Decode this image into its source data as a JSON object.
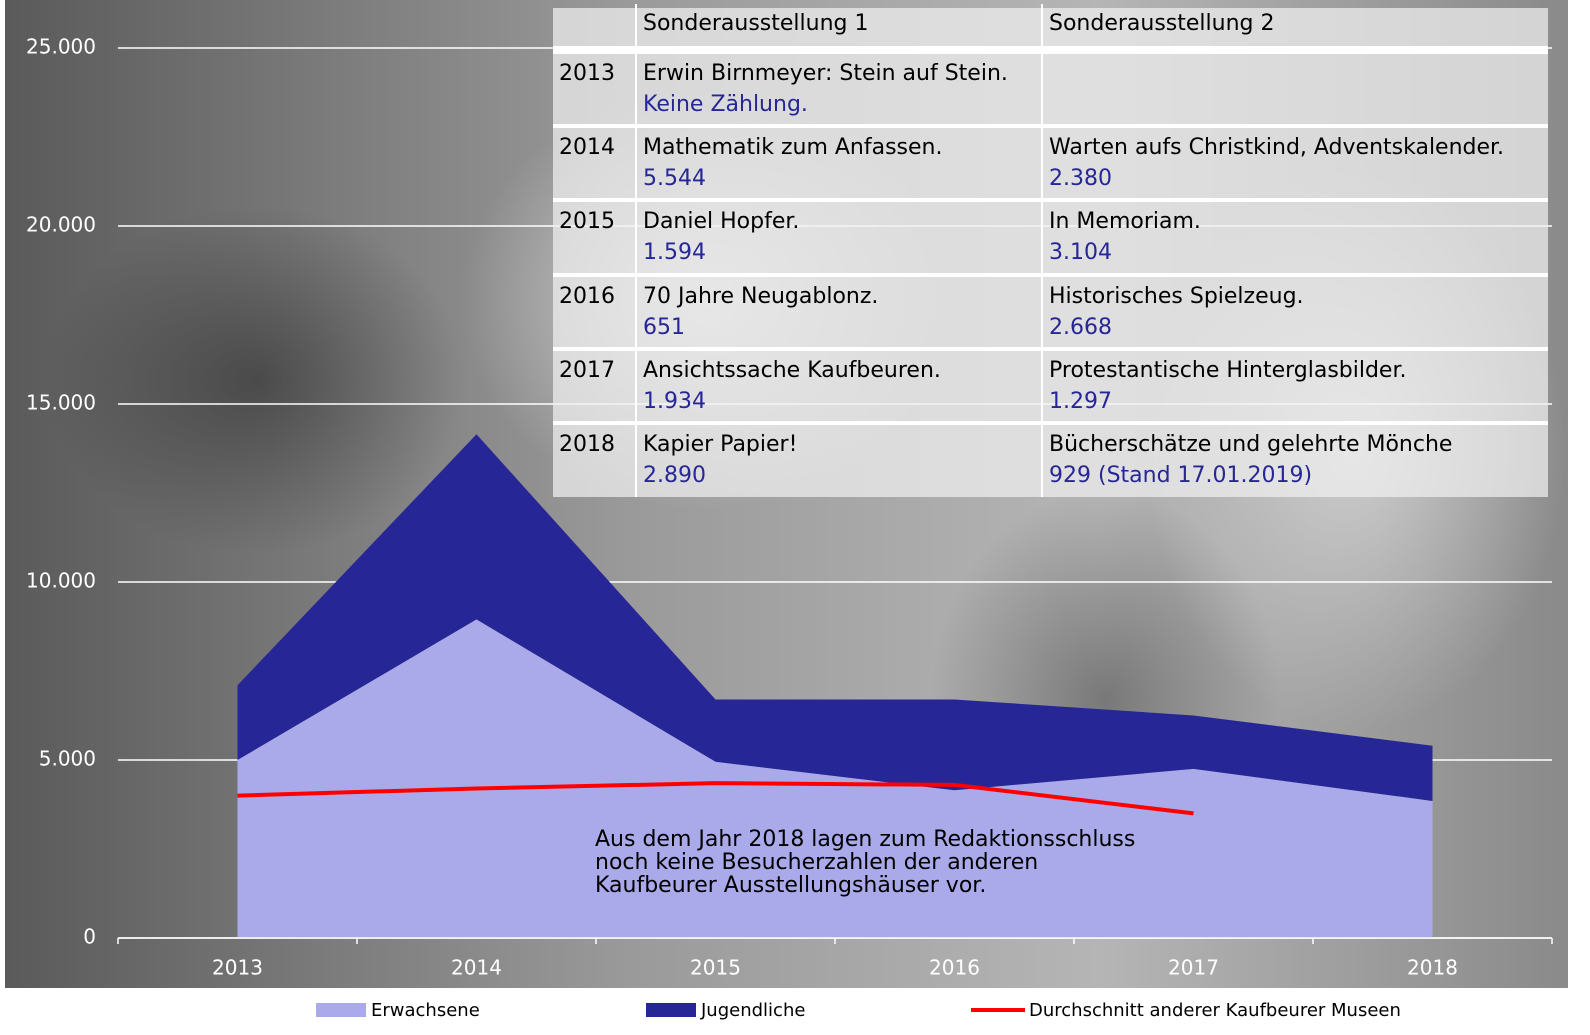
{
  "chart_data": {
    "type": "stacked-area-line",
    "categories": [
      "2013",
      "2014",
      "2015",
      "2016",
      "2017",
      "2018"
    ],
    "series": [
      {
        "name": "Erwachsene",
        "color": "#aaaaea",
        "kind": "area",
        "values": [
          5000,
          8950,
          4950,
          4150,
          4750,
          3850
        ]
      },
      {
        "name": "Jugendliche",
        "color": "#262696",
        "kind": "area",
        "values": [
          2100,
          5200,
          1750,
          2550,
          1500,
          1550
        ]
      },
      {
        "name": "Durchschnitt anderer Kaufbeurer Museen",
        "color": "#ff0000",
        "kind": "line",
        "values": [
          4000,
          4200,
          4350,
          4300,
          3500,
          null
        ]
      }
    ],
    "ylim": [
      0,
      25000
    ],
    "yticks": [
      0,
      {
        "value": 5000,
        "label": "5.000"
      },
      {
        "value": 10000,
        "label": "10.000"
      },
      {
        "value": 15000,
        "label": "15.000"
      },
      {
        "value": 20000,
        "label": "20.000"
      },
      {
        "value": 25000,
        "label": "25.000"
      }
    ],
    "grid": true,
    "legend": "bottom",
    "annotation": [
      "Aus dem Jahr 2018 lagen zum Redaktionsschluss",
      "noch keine Besucherzahlen der anderen",
      "Kaufbeurer Ausstellungshäuser vor."
    ]
  },
  "table": {
    "header": [
      "Sonderausstellung 1",
      "Sonderausstellung 2"
    ],
    "rows": [
      {
        "year": "2013",
        "s1": {
          "title": "Erwin Birnmeyer: Stein auf Stein.",
          "count": "Keine Zählung."
        },
        "s2": null
      },
      {
        "year": "2014",
        "s1": {
          "title": "Mathematik zum Anfassen.",
          "count": "5.544"
        },
        "s2": {
          "title": "Warten aufs Christkind,  Adventskalender.",
          "count": "2.380"
        }
      },
      {
        "year": "2015",
        "s1": {
          "title": "Daniel Hopfer.",
          "count": "1.594"
        },
        "s2": {
          "title": "In Memoriam.",
          "count": "3.104"
        }
      },
      {
        "year": "2016",
        "s1": {
          "title": "70 Jahre Neugablonz.",
          "count": "651"
        },
        "s2": {
          "title": "Historisches Spielzeug.",
          "count": "2.668"
        }
      },
      {
        "year": "2017",
        "s1": {
          "title": "Ansichtssache Kaufbeuren.",
          "count": "1.934"
        },
        "s2": {
          "title": "Protestantische Hinterglasbilder.",
          "count": "1.297"
        }
      },
      {
        "year": "2018",
        "s1": {
          "title": "Kapier Papier!",
          "count": "2.890"
        },
        "s2": {
          "title": "Bücherschätze und gelehrte Mönche",
          "count": "929 (Stand 17.01.2019)"
        }
      }
    ]
  }
}
